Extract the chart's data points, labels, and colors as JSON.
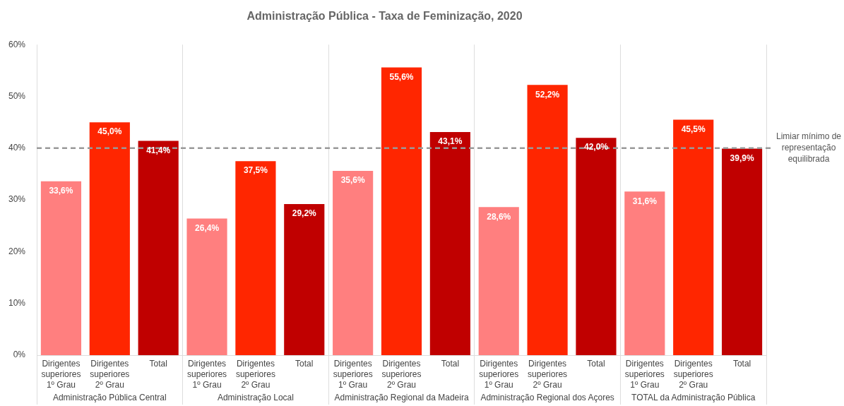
{
  "chart_data": {
    "type": "bar",
    "title": "Administração Pública - Taxa de Feminização, 2020",
    "categories": [
      "Administração Pública Central",
      "Administração Local",
      "Administração Regional da Madeira",
      "Administração Regional dos Açores",
      "TOTAL da Administração Pública"
    ],
    "series": [
      {
        "name": "Dirigentes superiores 1º Grau",
        "color": "#ff7f7f",
        "values": [
          33.6,
          26.4,
          35.6,
          28.6,
          31.6
        ],
        "value_labels": [
          "33,6%",
          "26,4%",
          "35,6%",
          "28,6%",
          "31,6%"
        ]
      },
      {
        "name": "Dirigentes superiores 2º Grau",
        "color": "#ff2600",
        "values": [
          45.0,
          37.5,
          55.6,
          52.2,
          45.5
        ],
        "value_labels": [
          "45,0%",
          "37,5%",
          "55,6%",
          "52,2%",
          "45,5%"
        ]
      },
      {
        "name": "Total",
        "color": "#c00000",
        "values": [
          41.4,
          29.2,
          43.1,
          42.0,
          39.9
        ],
        "value_labels": [
          "41,4%",
          "29,2%",
          "43,1%",
          "42,0%",
          "39,9%"
        ]
      }
    ],
    "ylim": [
      0,
      60
    ],
    "yticks": [
      {
        "value": 0,
        "label": "0%"
      },
      {
        "value": 10,
        "label": "10%"
      },
      {
        "value": 20,
        "label": "20%"
      },
      {
        "value": 30,
        "label": "30%"
      },
      {
        "value": 40,
        "label": "40%"
      },
      {
        "value": 50,
        "label": "50%"
      },
      {
        "value": 60,
        "label": "60%"
      }
    ],
    "ref_lines": [
      {
        "axis": "y",
        "value": 40,
        "label": "Limiar mínimo de representação equilibrada",
        "color": "#999999",
        "line_style": "dashed"
      }
    ],
    "grid": false,
    "legend": false
  }
}
